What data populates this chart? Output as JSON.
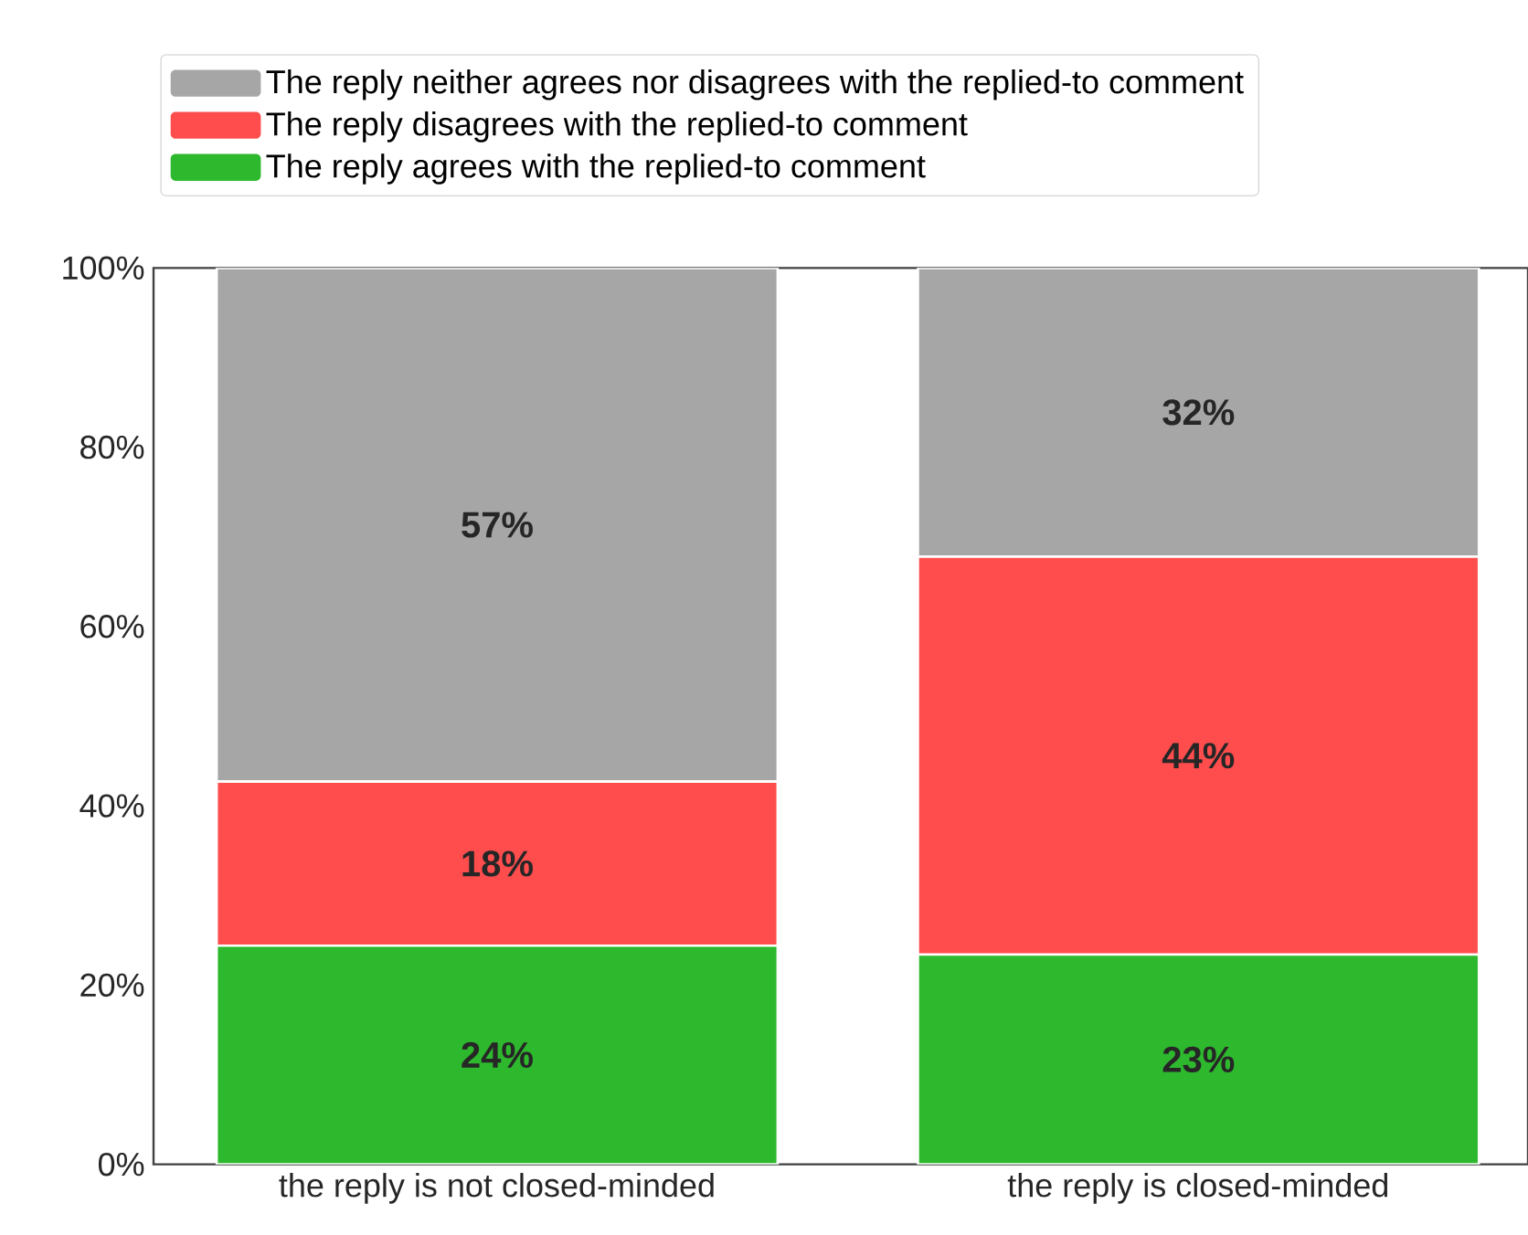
{
  "chart_data": {
    "type": "bar",
    "stacked": true,
    "categories": [
      "the reply is not closed-minded",
      "the reply is closed-minded"
    ],
    "series": [
      {
        "name": "The reply agrees with the replied-to comment",
        "color": "#2eb82e",
        "values": [
          24.4,
          23.4
        ],
        "value_labels": [
          "24%",
          "23%"
        ]
      },
      {
        "name": "The reply disagrees with the replied-to comment",
        "color": "#ff4d4d",
        "values": [
          18.3,
          44.4
        ],
        "value_labels": [
          "18%",
          "44%"
        ]
      },
      {
        "name": "The reply neither agrees nor disagrees with the replied-to comment",
        "color": "#a6a6a6",
        "values": [
          57.3,
          32.2
        ],
        "value_labels": [
          "57%",
          "32%"
        ]
      }
    ],
    "ylim": [
      0,
      100
    ],
    "yticks": [
      {
        "value": 0,
        "label": "0%"
      },
      {
        "value": 20,
        "label": "20%"
      },
      {
        "value": 40,
        "label": "40%"
      },
      {
        "value": 60,
        "label": "60%"
      },
      {
        "value": 80,
        "label": "80%"
      },
      {
        "value": 100,
        "label": "100%"
      }
    ],
    "grid": false,
    "legend": "top"
  }
}
